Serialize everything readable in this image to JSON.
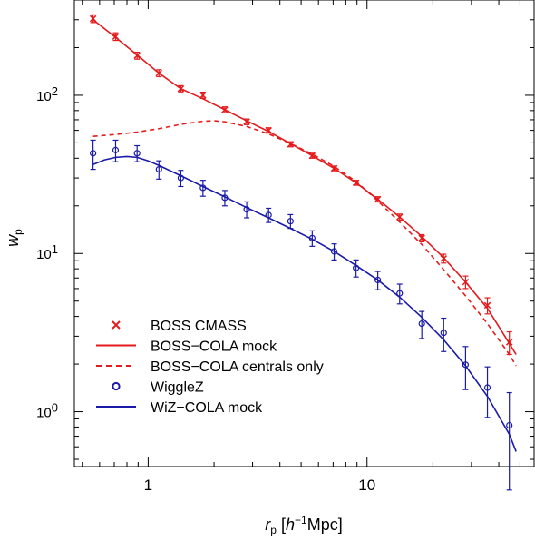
{
  "chart_data": {
    "type": "line",
    "xlabel": {
      "main": "r",
      "sub": "p",
      "unit_pre": "[",
      "unit_h": "h",
      "unit_sup": "−1",
      "unit_post": "Mpc]"
    },
    "ylabel": {
      "main": "w",
      "sub": "p"
    },
    "xscale": "log",
    "yscale": "log",
    "xlim": [
      0.46,
      58
    ],
    "ylim": [
      0.45,
      400
    ],
    "x_ticks": [
      {
        "value": 1,
        "label": "1"
      },
      {
        "value": 10,
        "label": "10"
      }
    ],
    "y_ticks": [
      {
        "value": 1,
        "base": "10",
        "exp": "0"
      },
      {
        "value": 10,
        "base": "10",
        "exp": "1"
      },
      {
        "value": 100,
        "base": "10",
        "exp": "2"
      }
    ],
    "legend_position": "bottom-left",
    "colors": {
      "boss": "#e41a1c",
      "wigglez": "#1a1aa8"
    },
    "series": [
      {
        "name": "BOSS CMASS",
        "kind": "points",
        "marker": "cross",
        "color": "#e41a1c",
        "x": [
          0.56,
          0.71,
          0.89,
          1.12,
          1.41,
          1.78,
          2.24,
          2.82,
          3.55,
          4.47,
          5.62,
          7.08,
          8.91,
          11.2,
          14.1,
          17.8,
          22.4,
          28.2,
          35.5,
          44.7
        ],
        "y": [
          305,
          235,
          178,
          138,
          110,
          100,
          81,
          68,
          60,
          49,
          41.5,
          34.5,
          28,
          22,
          17,
          12.5,
          9.3,
          6.6,
          4.7,
          2.75
        ],
        "err": [
          17,
          13,
          9,
          7,
          5,
          4.5,
          3.5,
          2.8,
          2.3,
          1.8,
          1.5,
          1.2,
          1.0,
          0.85,
          0.75,
          0.65,
          0.6,
          0.6,
          0.55,
          0.45
        ]
      },
      {
        "name": "BOSS−COLA mock",
        "kind": "line",
        "dash": "solid",
        "color": "#e41a1c",
        "x": [
          0.56,
          0.71,
          0.89,
          1.12,
          1.41,
          1.78,
          2.24,
          2.82,
          3.55,
          4.47,
          5.62,
          7.08,
          8.91,
          11.2,
          14.1,
          17.8,
          22.4,
          28.2,
          35.5,
          44.7,
          48
        ],
        "y": [
          300,
          232,
          180,
          138,
          110,
          95,
          81,
          69,
          59,
          49.5,
          41.5,
          34.5,
          28,
          22,
          17,
          12.8,
          9.4,
          6.6,
          4.5,
          2.7,
          2.3
        ]
      },
      {
        "name": "BOSS−COLA centrals only",
        "kind": "line",
        "dash": "dashed",
        "color": "#e41a1c",
        "x": [
          0.56,
          0.71,
          0.89,
          1.12,
          1.41,
          1.78,
          2.0,
          2.24,
          2.82,
          3.55,
          4.47,
          5.62,
          7.08,
          8.91,
          11.2,
          14.1,
          17.8,
          22.4,
          28.2,
          35.5,
          44.7,
          48
        ],
        "y": [
          55,
          56.5,
          58.5,
          61.5,
          65.5,
          68.5,
          69,
          68,
          63.5,
          57,
          49.5,
          42.5,
          35.5,
          28.5,
          21.5,
          15.8,
          11.4,
          7.9,
          5.4,
          3.6,
          2.3,
          1.95
        ]
      },
      {
        "name": "WiggleZ",
        "kind": "points",
        "marker": "circle",
        "color": "#1a1aa8",
        "x": [
          0.56,
          0.71,
          0.89,
          1.12,
          1.41,
          1.78,
          2.24,
          2.82,
          3.55,
          4.47,
          5.62,
          7.08,
          8.91,
          11.2,
          14.1,
          17.8,
          22.4,
          28.2,
          35.5,
          44.7
        ],
        "y": [
          43,
          45,
          43,
          34,
          30,
          26,
          22.5,
          19,
          17.5,
          16,
          12.5,
          10.3,
          8.1,
          6.8,
          5.6,
          3.6,
          3.15,
          1.98,
          1.42,
          0.82
        ],
        "err": [
          9,
          7,
          5,
          4.5,
          3.5,
          3,
          2.5,
          2.2,
          1.8,
          1.6,
          1.4,
          1.2,
          1.0,
          0.9,
          0.8,
          0.7,
          0.75,
          0.6,
          0.5,
          0.5
        ]
      },
      {
        "name": "WiZ−COLA mock",
        "kind": "line",
        "dash": "solid",
        "color": "#1a1aa8",
        "x": [
          0.56,
          0.63,
          0.71,
          0.8,
          0.89,
          1.0,
          1.12,
          1.41,
          1.78,
          2.24,
          2.82,
          3.55,
          4.47,
          5.62,
          7.08,
          8.91,
          11.2,
          14.1,
          17.8,
          22.4,
          28.2,
          35.5,
          44.7,
          48
        ],
        "y": [
          36.5,
          39,
          40.5,
          41,
          40.5,
          38.5,
          36,
          31,
          26.5,
          22.8,
          19.5,
          16.8,
          14.4,
          12.3,
          10.3,
          8.4,
          6.8,
          5.3,
          3.95,
          2.85,
          1.95,
          1.25,
          0.72,
          0.56
        ]
      }
    ],
    "legend": [
      {
        "label": "BOSS CMASS",
        "symbol": "cross",
        "color": "#e41a1c"
      },
      {
        "label": "BOSS−COLA mock",
        "symbol": "solid",
        "color": "#e41a1c"
      },
      {
        "label": "BOSS−COLA centrals only",
        "symbol": "dashed",
        "color": "#e41a1c"
      },
      {
        "label": "WiggleZ",
        "symbol": "circle",
        "color": "#1a1aa8"
      },
      {
        "label": "WiZ−COLA mock",
        "symbol": "solid",
        "color": "#1a1aa8"
      }
    ]
  }
}
